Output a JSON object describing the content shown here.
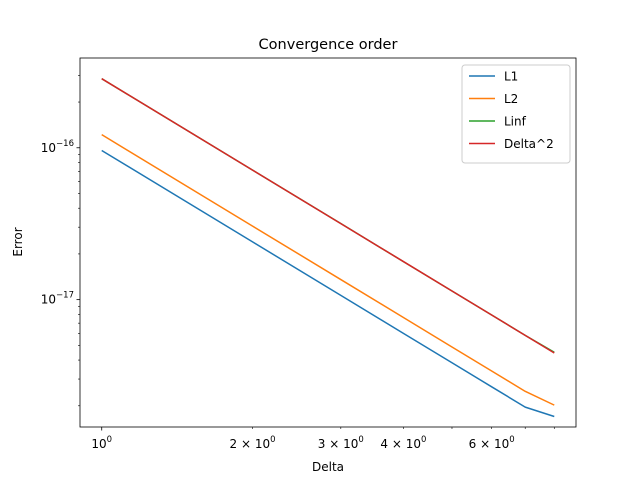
{
  "chart_data": {
    "type": "line",
    "title": "Convergence order",
    "xlabel": "Delta",
    "ylabel": "Error",
    "xscale": "log",
    "yscale": "log",
    "xlim": [
      0.905,
      8.84
    ],
    "ylim": [
      1.45e-18,
      3.9e-16
    ],
    "grid": false,
    "legend_position": "top-right",
    "x_major_ticks": [
      {
        "value": 1,
        "base": "10",
        "exp": "0"
      }
    ],
    "x_minor_ticks": [
      {
        "value": 2,
        "mant": "2",
        "base": "10",
        "exp": "0",
        "labeled": true
      },
      {
        "value": 3,
        "mant": "3",
        "base": "10",
        "exp": "0",
        "labeled": true
      },
      {
        "value": 4,
        "mant": "4",
        "base": "10",
        "exp": "0",
        "labeled": true
      },
      {
        "value": 5,
        "labeled": false
      },
      {
        "value": 6,
        "mant": "6",
        "base": "10",
        "exp": "0",
        "labeled": true
      },
      {
        "value": 7,
        "labeled": false
      },
      {
        "value": 8,
        "labeled": false
      }
    ],
    "y_major_ticks": [
      {
        "value": 1e-17,
        "base": "10",
        "exp": "−17"
      },
      {
        "value": 1e-16,
        "base": "10",
        "exp": "−16"
      }
    ],
    "x": [
      1,
      2,
      3,
      4,
      5,
      6,
      7,
      8
    ],
    "series": [
      {
        "name": "L1",
        "color": "#1f77b4",
        "values": [
          9.6e-17,
          2.4e-17,
          1.067e-17,
          6e-18,
          3.84e-18,
          2.667e-18,
          1.96e-18,
          1.7e-18
        ]
      },
      {
        "name": "L2",
        "color": "#ff7f0e",
        "values": [
          1.22e-16,
          3.05e-17,
          1.356e-17,
          7.63e-18,
          4.88e-18,
          3.39e-18,
          2.49e-18,
          2.02e-18
        ]
      },
      {
        "name": "Linf",
        "color": "#2ca02c",
        "values": [
          2.85e-16,
          7.13e-17,
          3.17e-17,
          1.78e-17,
          1.14e-17,
          7.92e-18,
          5.82e-18,
          4.5e-18
        ]
      },
      {
        "name": "Delta^2",
        "color": "#d62728",
        "values": [
          2.85e-16,
          7.125e-17,
          3.167e-17,
          1.781e-17,
          1.14e-17,
          7.917e-18,
          5.816e-18,
          4.45e-18
        ]
      }
    ]
  }
}
